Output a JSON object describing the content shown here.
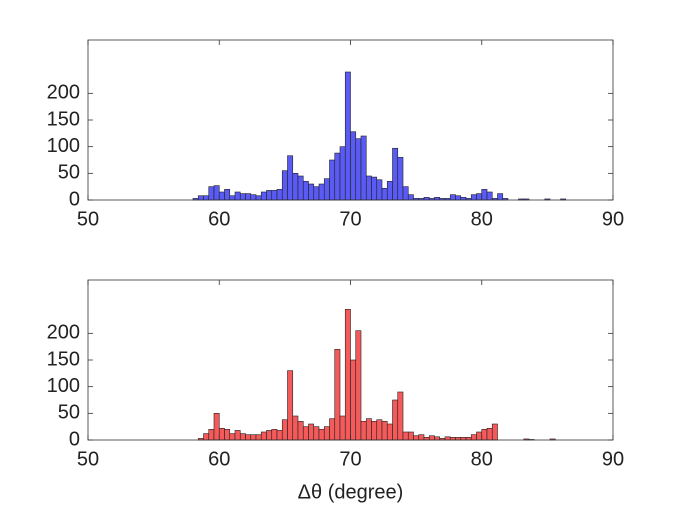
{
  "chart_data": [
    {
      "type": "histogram",
      "bins": [
        58.0,
        58.4,
        58.8,
        59.2,
        59.6,
        60.0,
        60.4,
        60.8,
        61.2,
        61.6,
        62.0,
        62.4,
        62.8,
        63.2,
        63.6,
        64.0,
        64.4,
        64.8,
        65.2,
        65.6,
        66.0,
        66.4,
        66.8,
        67.2,
        67.6,
        68.0,
        68.4,
        68.8,
        69.2,
        69.6,
        70.0,
        70.4,
        70.8,
        71.2,
        71.6,
        72.0,
        72.4,
        72.8,
        73.2,
        73.6,
        74.0,
        74.4,
        74.8,
        75.2,
        75.6,
        76.0,
        76.4,
        76.8,
        77.2,
        77.6,
        78.0,
        78.4,
        78.8,
        79.2,
        79.6,
        80.0,
        80.4,
        80.8,
        81.2,
        81.6,
        82.0,
        82.4,
        82.8,
        83.2,
        83.6,
        84.0,
        84.4,
        84.8,
        85.2,
        85.6,
        86.0,
        86.4,
        86.8
      ],
      "values": [
        3,
        8,
        8,
        25,
        27,
        15,
        20,
        8,
        15,
        12,
        12,
        10,
        8,
        15,
        18,
        18,
        20,
        55,
        83,
        50,
        45,
        35,
        30,
        25,
        30,
        40,
        75,
        88,
        100,
        240,
        128,
        115,
        120,
        45,
        43,
        38,
        22,
        35,
        97,
        80,
        25,
        10,
        3,
        3,
        5,
        3,
        5,
        3,
        3,
        10,
        8,
        5,
        3,
        10,
        12,
        20,
        15,
        3,
        12,
        3,
        0,
        0,
        2,
        2,
        0,
        0,
        0,
        2,
        0,
        0,
        2,
        0
      ],
      "color": "#5a5af5",
      "xlim": [
        50,
        90
      ],
      "xticks": [
        50,
        60,
        70,
        80,
        90
      ],
      "ylim": [
        0,
        300
      ],
      "yticks": [
        0,
        50,
        100,
        150,
        200
      ]
    },
    {
      "type": "histogram",
      "bins": [
        58.0,
        58.4,
        58.8,
        59.2,
        59.6,
        60.0,
        60.4,
        60.8,
        61.2,
        61.6,
        62.0,
        62.4,
        62.8,
        63.2,
        63.6,
        64.0,
        64.4,
        64.8,
        65.2,
        65.6,
        66.0,
        66.4,
        66.8,
        67.2,
        67.6,
        68.0,
        68.4,
        68.8,
        69.2,
        69.6,
        70.0,
        70.4,
        70.8,
        71.2,
        71.6,
        72.0,
        72.4,
        72.8,
        73.2,
        73.6,
        74.0,
        74.4,
        74.8,
        75.2,
        75.6,
        76.0,
        76.4,
        76.8,
        77.2,
        77.6,
        78.0,
        78.4,
        78.8,
        79.2,
        79.6,
        80.0,
        80.4,
        80.8,
        81.2,
        81.6,
        82.0,
        82.4,
        82.8,
        83.2,
        83.6,
        84.0,
        84.4,
        84.8,
        85.2,
        85.6,
        86.0,
        86.4,
        86.8
      ],
      "values": [
        0,
        3,
        12,
        20,
        50,
        22,
        20,
        12,
        18,
        12,
        10,
        10,
        10,
        15,
        18,
        20,
        18,
        38,
        130,
        45,
        35,
        25,
        30,
        25,
        20,
        25,
        40,
        170,
        45,
        245,
        150,
        205,
        35,
        40,
        35,
        38,
        35,
        30,
        75,
        90,
        15,
        15,
        8,
        10,
        5,
        8,
        6,
        3,
        6,
        5,
        5,
        5,
        5,
        10,
        15,
        20,
        22,
        30,
        0,
        0,
        0,
        0,
        0,
        2,
        1,
        0,
        0,
        0,
        2,
        0,
        0,
        0
      ],
      "color": "#f55a5a",
      "xlim": [
        50,
        90
      ],
      "xticks": [
        50,
        60,
        70,
        80,
        90
      ],
      "ylim": [
        0,
        300
      ],
      "yticks": [
        0,
        50,
        100,
        150,
        200
      ],
      "xlabel": "Δθ (degree)"
    }
  ]
}
